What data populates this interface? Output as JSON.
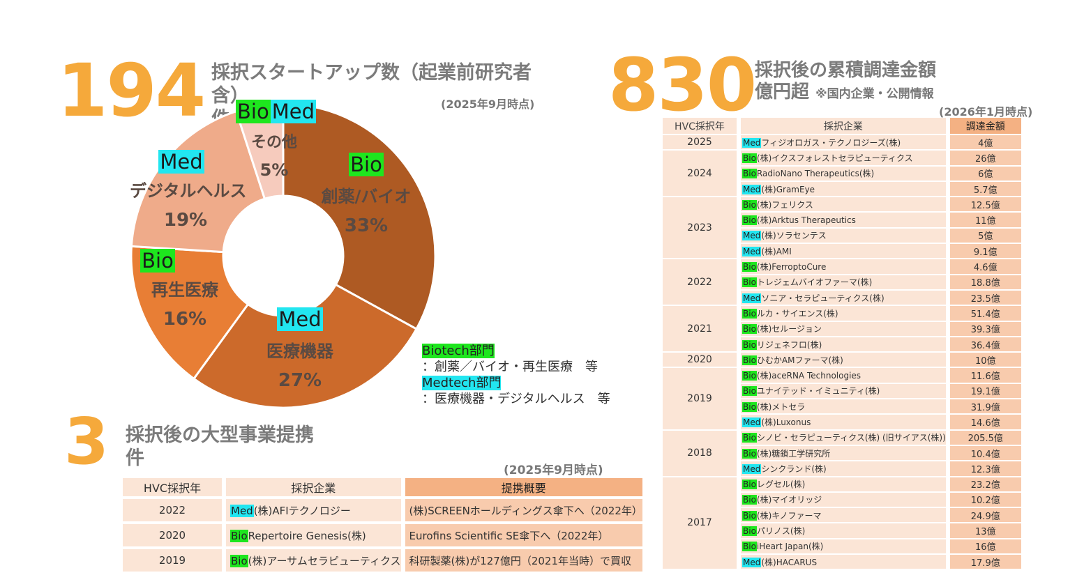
{
  "stat_startups": {
    "number": "194",
    "label": "採択スタートアップ数（起業前研究者含）",
    "unit": "件",
    "as_of": "(2025年9月時点)"
  },
  "stat_funding": {
    "number": "830",
    "label": "採択後の累積調達金額",
    "unit": "億円超",
    "note": "※国内企業・公開情報",
    "as_of": "(2026年1月時点)"
  },
  "stat_alliances": {
    "number": "3",
    "label": "採択後の大型事業提携",
    "unit": "件",
    "as_of": "(2025年9月時点)"
  },
  "chart_data": {
    "type": "pie",
    "labels": [
      "創薬/バイオ",
      "医療機器",
      "再生医療",
      "デジタルヘルス",
      "その他"
    ],
    "values": [
      33,
      27,
      16,
      19,
      5
    ],
    "tags": [
      "Bio",
      "Med",
      "Bio",
      "Med",
      "BioMed"
    ],
    "data_labels": [
      "33%",
      "27%",
      "16%",
      "19%",
      "5%"
    ],
    "colors": [
      "#ae5a23",
      "#cc6a2b",
      "#e87e35",
      "#efab8a",
      "#f6cbbd"
    ]
  },
  "legend": {
    "biotech_label": "Biotech部門",
    "biotech_desc": "：創薬／バイオ・再生医療　等",
    "medtech_label": "Medtech部門",
    "medtech_desc": "：医療機器・デジタルヘルス　等"
  },
  "colors": {
    "accent_orange": "#f5a93b",
    "bio_tag": "#1ee61e",
    "med_tag": "#22e6f0"
  },
  "funding_table": {
    "headers": [
      "HVC採択年",
      "採択企業",
      "調達金額"
    ],
    "groups": [
      {
        "year": "2025",
        "rows": [
          {
            "tag": "Med",
            "company": "フィジオロガス・テクノロジーズ(株)",
            "amount": "4億"
          }
        ]
      },
      {
        "year": "2024",
        "rows": [
          {
            "tag": "Bio",
            "company": "(株)イクスフォレストセラピューティクス",
            "amount": "26億"
          },
          {
            "tag": "Bio",
            "company": "RadioNano Therapeutics(株)",
            "amount": "6億"
          },
          {
            "tag": "Med",
            "company": "(株)GramEye",
            "amount": "5.7億"
          }
        ]
      },
      {
        "year": "2023",
        "rows": [
          {
            "tag": "Bio",
            "company": "(株)フェリクス",
            "amount": "12.5億"
          },
          {
            "tag": "Bio",
            "company": "(株)Arktus Therapeutics",
            "amount": "11億"
          },
          {
            "tag": "Med",
            "company": "(株)ソラセンテス",
            "amount": "5億"
          },
          {
            "tag": "Med",
            "company": "(株)AMI",
            "amount": "9.1億"
          }
        ]
      },
      {
        "year": "2022",
        "rows": [
          {
            "tag": "Bio",
            "company": "(株)FerroptoCure",
            "amount": "4.6億"
          },
          {
            "tag": "Bio",
            "company": "トレジェムバイオファーマ(株)",
            "amount": "18.8億"
          },
          {
            "tag": "Med",
            "company": "ソニア・セラピューティクス(株)",
            "amount": "23.5億"
          }
        ]
      },
      {
        "year": "2021",
        "rows": [
          {
            "tag": "Bio",
            "company": "ルカ・サイエンス(株)",
            "amount": "51.4億"
          },
          {
            "tag": "Bio",
            "company": "(株)セルージョン",
            "amount": "39.3億"
          },
          {
            "tag": "Bio",
            "company": "リジェネフロ(株)",
            "amount": "36.4億"
          }
        ]
      },
      {
        "year": "2020",
        "rows": [
          {
            "tag": "Bio",
            "company": "ひむかAMファーマ(株)",
            "amount": "10億"
          }
        ]
      },
      {
        "year": "2019",
        "rows": [
          {
            "tag": "Bio",
            "company": "(株)aceRNA Technologies",
            "amount": "11.6億"
          },
          {
            "tag": "Bio",
            "company": "ユナイテッド・イミュニティ(株)",
            "amount": "19.1億"
          },
          {
            "tag": "Bio",
            "company": "(株)メトセラ",
            "amount": "31.9億"
          },
          {
            "tag": "Med",
            "company": "(株)Luxonus",
            "amount": "14.6億"
          }
        ]
      },
      {
        "year": "2018",
        "rows": [
          {
            "tag": "Bio",
            "company": "シノビ・セラピューティクス(株) (旧サイアス(株))",
            "amount": "205.5億"
          },
          {
            "tag": "Bio",
            "company": "(株)糖鎖工学研究所",
            "amount": "10.4億"
          },
          {
            "tag": "Med",
            "company": "シンクランド(株)",
            "amount": "12.3億"
          }
        ]
      },
      {
        "year": "2017",
        "rows": [
          {
            "tag": "Bio",
            "company": "レグセル(株)",
            "amount": "23.2億"
          },
          {
            "tag": "Bio",
            "company": "(株)マイオリッジ",
            "amount": "10.2億"
          },
          {
            "tag": "Bio",
            "company": "(株)キノファーマ",
            "amount": "24.9億"
          },
          {
            "tag": "Bio",
            "company": "パリノス(株)",
            "amount": "13億"
          },
          {
            "tag": "Bio",
            "company": "iHeart Japan(株)",
            "amount": "16億"
          },
          {
            "tag": "Med",
            "company": "(株)HACARUS",
            "amount": "17.9億"
          }
        ]
      }
    ]
  },
  "alliance_table": {
    "headers": [
      "HVC採択年",
      "採択企業",
      "提携概要"
    ],
    "rows": [
      {
        "year": "2022",
        "tag": "Med",
        "company": "(株)AFIテクノロジー",
        "summary": "(株)SCREENホールディングス傘下へ（2022年）"
      },
      {
        "year": "2020",
        "tag": "Bio",
        "company": "Repertoire Genesis(株)",
        "summary": "Eurofins Scientific SE傘下へ（2022年）"
      },
      {
        "year": "2019",
        "tag": "Bio",
        "company": "(株)アーサムセラピューティクス",
        "summary": "科研製薬(株)が127億円（2021年当時）で買収"
      }
    ]
  }
}
